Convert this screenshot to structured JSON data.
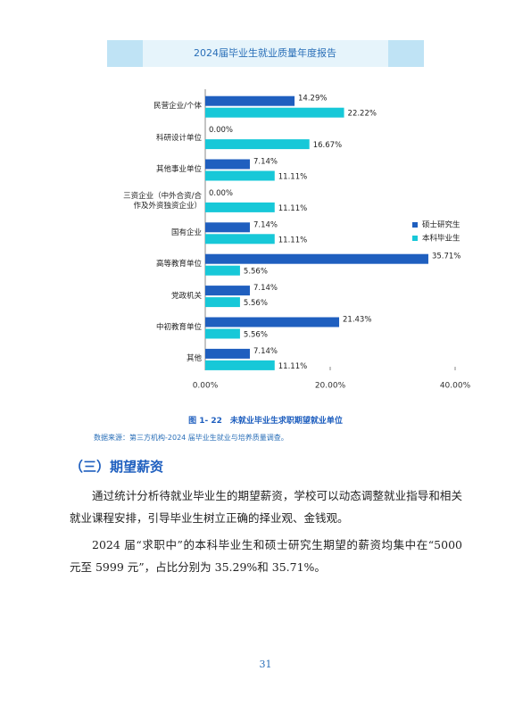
{
  "header": {
    "title": "2024届毕业生就业质量年度报告"
  },
  "chart_data": {
    "type": "hbar",
    "categories": [
      "民营企业/个体",
      "科研设计单位",
      "其他事业单位",
      "三资企业（中外合资/合作及外资独资企业）",
      "国有企业",
      "高等教育单位",
      "党政机关",
      "中初教育单位",
      "其他"
    ],
    "series": [
      {
        "name": "硕士研究生",
        "color": "#1f5fbf",
        "values": [
          14.29,
          0,
          7.14,
          0,
          7.14,
          35.71,
          7.14,
          21.43,
          7.14
        ],
        "value_labels": [
          "14.29%",
          "0.00%",
          "7.14%",
          "0.00%",
          "7.14%",
          "35.71%",
          "7.14%",
          "21.43%",
          "7.14%"
        ]
      },
      {
        "name": "本科毕业生",
        "color": "#17c8d8",
        "values": [
          22.22,
          16.67,
          11.11,
          11.11,
          11.11,
          5.56,
          5.56,
          5.56,
          11.11
        ],
        "value_labels": [
          "22.22%",
          "16.67%",
          "11.11%",
          "11.11%",
          "11.11%",
          "5.56%",
          "5.56%",
          "5.56%",
          "11.11%"
        ]
      }
    ],
    "xlim": [
      0,
      40
    ],
    "xticks": [
      {
        "value": 0,
        "label": "0.00%"
      },
      {
        "value": 20,
        "label": "20.00%"
      },
      {
        "value": 40,
        "label": "40.00%"
      }
    ],
    "legend": "right"
  },
  "caption": "图 1- 22　未就业毕业生求职期望就业单位",
  "source": "数据来源：第三方机构-2024 届毕业生就业与培养质量调查。",
  "section": {
    "heading": "（三）期望薪资",
    "paragraphs": [
      "通过统计分析待就业毕业生的期望薪资，学校可以动态调整就业指导和相关就业课程安排，引导毕业生树立正确的择业观、金钱观。",
      "2024 届“求职中”的本科毕业生和硕士研究生期望的薪资均集中在“5000 元至 5999 元”，占比分别为 35.29%和 35.71%。"
    ]
  },
  "page_number": "31"
}
